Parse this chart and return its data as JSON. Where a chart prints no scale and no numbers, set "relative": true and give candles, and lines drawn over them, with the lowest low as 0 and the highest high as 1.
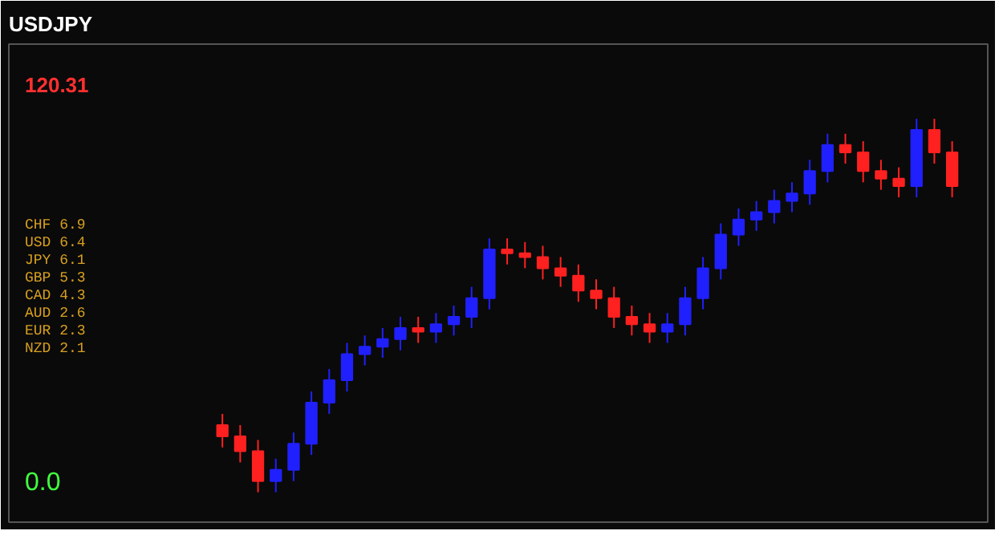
{
  "chart_data": {
    "type": "candlestick",
    "title": "USDJPY",
    "relative": true,
    "categories": [
      null,
      null,
      null,
      null,
      null,
      null,
      null,
      null,
      null,
      null,
      null,
      null,
      null,
      null,
      null,
      null,
      null,
      null,
      null,
      null,
      null,
      null,
      null,
      null,
      null,
      null,
      null,
      null,
      null,
      null,
      null,
      null,
      null,
      null,
      null,
      null,
      null,
      null,
      null,
      null,
      null,
      null
    ],
    "ohlc": [
      [
        0.18,
        0.21,
        0.12,
        0.15
      ],
      [
        0.15,
        0.18,
        0.08,
        0.11
      ],
      [
        0.11,
        0.14,
        0.0,
        0.03
      ],
      [
        0.03,
        0.09,
        0.0,
        0.06
      ],
      [
        0.06,
        0.16,
        0.03,
        0.13
      ],
      [
        0.13,
        0.27,
        0.1,
        0.24
      ],
      [
        0.24,
        0.33,
        0.21,
        0.3
      ],
      [
        0.3,
        0.4,
        0.27,
        0.37
      ],
      [
        0.37,
        0.42,
        0.34,
        0.39
      ],
      [
        0.39,
        0.44,
        0.36,
        0.41
      ],
      [
        0.41,
        0.47,
        0.38,
        0.44
      ],
      [
        0.44,
        0.47,
        0.4,
        0.43
      ],
      [
        0.43,
        0.48,
        0.4,
        0.45
      ],
      [
        0.45,
        0.5,
        0.42,
        0.47
      ],
      [
        0.47,
        0.55,
        0.44,
        0.52
      ],
      [
        0.52,
        0.68,
        0.49,
        0.65
      ],
      [
        0.65,
        0.68,
        0.61,
        0.64
      ],
      [
        0.64,
        0.67,
        0.6,
        0.63
      ],
      [
        0.63,
        0.66,
        0.57,
        0.6
      ],
      [
        0.6,
        0.63,
        0.55,
        0.58
      ],
      [
        0.58,
        0.61,
        0.51,
        0.54
      ],
      [
        0.54,
        0.57,
        0.49,
        0.52
      ],
      [
        0.52,
        0.55,
        0.44,
        0.47
      ],
      [
        0.47,
        0.5,
        0.42,
        0.45
      ],
      [
        0.45,
        0.48,
        0.4,
        0.43
      ],
      [
        0.43,
        0.48,
        0.4,
        0.45
      ],
      [
        0.45,
        0.55,
        0.42,
        0.52
      ],
      [
        0.52,
        0.63,
        0.49,
        0.6
      ],
      [
        0.6,
        0.72,
        0.57,
        0.69
      ],
      [
        0.69,
        0.76,
        0.66,
        0.73
      ],
      [
        0.73,
        0.78,
        0.7,
        0.75
      ],
      [
        0.75,
        0.81,
        0.72,
        0.78
      ],
      [
        0.78,
        0.83,
        0.75,
        0.8
      ],
      [
        0.8,
        0.89,
        0.77,
        0.86
      ],
      [
        0.86,
        0.96,
        0.83,
        0.93
      ],
      [
        0.93,
        0.96,
        0.88,
        0.91
      ],
      [
        0.91,
        0.94,
        0.83,
        0.86
      ],
      [
        0.86,
        0.89,
        0.81,
        0.84
      ],
      [
        0.84,
        0.87,
        0.79,
        0.82
      ],
      [
        0.82,
        1.0,
        0.79,
        0.97
      ],
      [
        0.97,
        1.0,
        0.88,
        0.91
      ],
      [
        0.91,
        0.94,
        0.79,
        0.82
      ]
    ],
    "colors": [
      "#ff2020",
      "#ff2020",
      "#ff2020",
      "#2020ff",
      "#2020ff",
      "#2020ff",
      "#2020ff",
      "#2020ff",
      "#2020ff",
      "#2020ff",
      "#2020ff",
      "#ff2020",
      "#2020ff",
      "#2020ff",
      "#2020ff",
      "#2020ff",
      "#ff2020",
      "#ff2020",
      "#ff2020",
      "#ff2020",
      "#ff2020",
      "#ff2020",
      "#ff2020",
      "#ff2020",
      "#ff2020",
      "#2020ff",
      "#2020ff",
      "#2020ff",
      "#2020ff",
      "#2020ff",
      "#2020ff",
      "#2020ff",
      "#2020ff",
      "#2020ff",
      "#2020ff",
      "#ff2020",
      "#ff2020",
      "#ff2020",
      "#ff2020",
      "#2020ff",
      "#ff2020",
      "#ff2020"
    ],
    "annotations": [
      "120.31",
      "CHF  6.9",
      "USD  6.4",
      "JPY  6.1",
      "GBP  5.3",
      "CAD  4.3",
      "AUD  2.6",
      "EUR  2.3",
      "NZD  2.1",
      "0.0"
    ]
  }
}
